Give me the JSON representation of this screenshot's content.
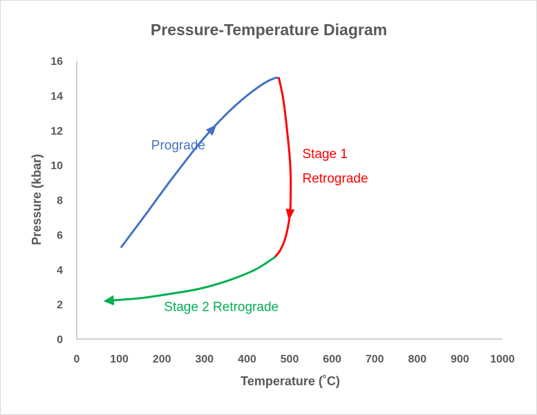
{
  "chart_data": {
    "type": "line",
    "title": "Pressure-Temperature Diagram",
    "xlabel": "Temperature (˚C)",
    "ylabel": "Pressure (kbar)",
    "xlim": [
      0,
      1000
    ],
    "ylim": [
      0,
      16
    ],
    "xticks": [
      0,
      100,
      200,
      300,
      400,
      500,
      600,
      700,
      800,
      900,
      1000
    ],
    "yticks": [
      0,
      2,
      4,
      6,
      8,
      10,
      12,
      14,
      16
    ],
    "grid": false,
    "legend": "none",
    "series": [
      {
        "name": "Prograde",
        "color": "#4472c4",
        "arrow_at_end": false,
        "arrow_mid_index": 3,
        "x": [
          105,
          160,
          220,
          290,
          350,
          400,
          440,
          465,
          475
        ],
        "y": [
          5.3,
          7.1,
          9.1,
          11.3,
          12.9,
          14.0,
          14.7,
          15.0,
          15.0
        ]
      },
      {
        "name": "Stage 1 Retrograde",
        "color": "#ff0000",
        "arrow_at_end": false,
        "arrow_mid_index": 4,
        "x": [
          475,
          485,
          495,
          502,
          502,
          498,
          490,
          478,
          465
        ],
        "y": [
          15.0,
          13.8,
          11.8,
          9.8,
          7.6,
          6.7,
          5.8,
          5.1,
          4.7
        ]
      },
      {
        "name": "Stage 2 Retrograde",
        "color": "#00b050",
        "arrow_at_end": true,
        "x": [
          465,
          420,
          360,
          290,
          220,
          150,
          100,
          75
        ],
        "y": [
          4.7,
          4.0,
          3.4,
          2.9,
          2.6,
          2.35,
          2.25,
          2.2
        ]
      }
    ],
    "annotations": [
      {
        "text": "Prograde",
        "x": 175,
        "y": 10.9,
        "color": "#4472c4"
      },
      {
        "text": "Stage 1",
        "x": 530,
        "y": 10.4,
        "color": "#ff0000"
      },
      {
        "text": "Retrograde",
        "x": 530,
        "y": 9.0,
        "color": "#ff0000"
      },
      {
        "text": "Stage 2 Retrograde",
        "x": 205,
        "y": 1.6,
        "color": "#00b050"
      }
    ]
  }
}
